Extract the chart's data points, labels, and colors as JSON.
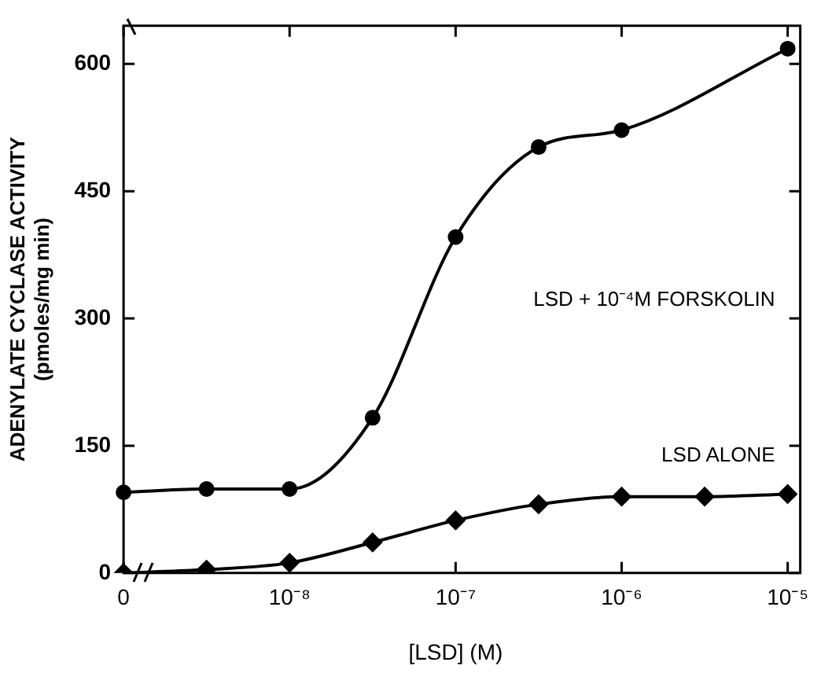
{
  "chart_data": {
    "type": "line",
    "xlabel": "[LSD] (M)",
    "ylabel": "ADENYLATE CYCLASE ACTIVITY\n(pmoles/mg min)",
    "categories": [
      "0",
      null,
      "10⁻⁸",
      null,
      "10⁻⁷",
      null,
      "10⁻⁶",
      null,
      "10⁻⁵"
    ],
    "ylim": [
      0,
      645
    ],
    "yticks": [
      0,
      150,
      300,
      450,
      600
    ],
    "series": [
      {
        "name": "LSD + 10⁻⁴M FORSKOLIN",
        "color": "#000000",
        "marker": "circle",
        "values": [
          95,
          99,
          99,
          183,
          396,
          502,
          522,
          null,
          618
        ]
      },
      {
        "name": "LSD ALONE",
        "color": "#000000",
        "marker": "diamond",
        "values": [
          0,
          4,
          12,
          36,
          62,
          81,
          90,
          90,
          93
        ]
      }
    ],
    "grid": false
  }
}
